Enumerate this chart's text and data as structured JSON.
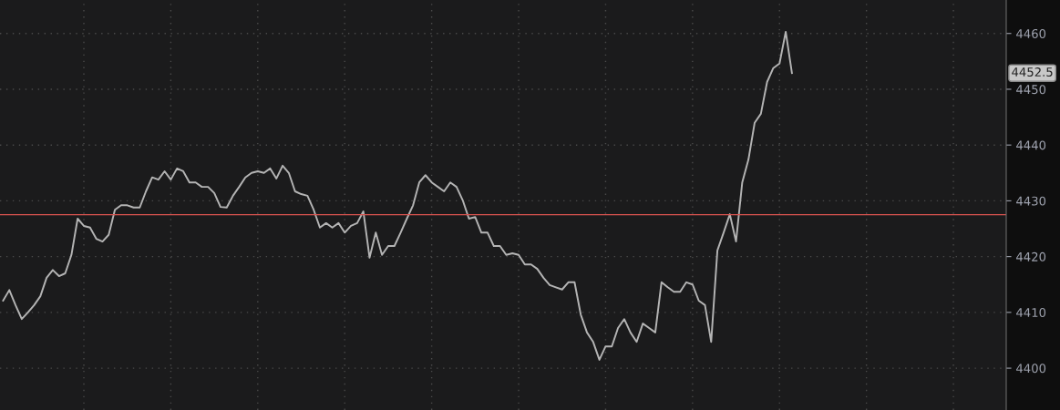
{
  "chart_data": {
    "type": "line",
    "categories": [
      null,
      null,
      null,
      null,
      null,
      null,
      null,
      null,
      null,
      null,
      null,
      null,
      null,
      null,
      null,
      null,
      null,
      null,
      null,
      null,
      null,
      null,
      null,
      null,
      null,
      null,
      null,
      null,
      null,
      null,
      null,
      null,
      null,
      null,
      null,
      null,
      null,
      null,
      null,
      null,
      null,
      null,
      null,
      null,
      null,
      null,
      null,
      null,
      null,
      null,
      null,
      null,
      null,
      null,
      null,
      null,
      null,
      null,
      null,
      null,
      null,
      null,
      null,
      null,
      null,
      null,
      null,
      null,
      null,
      null,
      null,
      null,
      null,
      null,
      null,
      null,
      null,
      null,
      null,
      null,
      null,
      null,
      null,
      null,
      null,
      null,
      null,
      null,
      null,
      null,
      null,
      null,
      null,
      null,
      null,
      null,
      null,
      null,
      null,
      null,
      null,
      null,
      null,
      null,
      null,
      null,
      null,
      null,
      null,
      null,
      null,
      null,
      null,
      null,
      null,
      null,
      null,
      null,
      null,
      null,
      null,
      null,
      null,
      null,
      null,
      null,
      null,
      null,
      null,
      null,
      null,
      null,
      null,
      null,
      null,
      null,
      null,
      null,
      null,
      null,
      null,
      null,
      null,
      null,
      null,
      null,
      null,
      null,
      null,
      null,
      null,
      null,
      null,
      null,
      null,
      null,
      null,
      null,
      null,
      null,
      null,
      null
    ],
    "series": [
      {
        "color": "#b4b4b4",
        "values": [
          4412.1,
          4414.0,
          4411.3,
          4408.8,
          4410,
          4411.3,
          4412.9,
          4416.2,
          4417.6,
          4416.5,
          4417,
          4420.3,
          4426.8,
          4425.5,
          4425.2,
          4423.2,
          4422.7,
          4423.9,
          4428.4,
          4429.2,
          4429.2,
          4428.8,
          4428.8,
          4431.7,
          4434.2,
          4433.8,
          4435.3,
          4433.8,
          4435.8,
          4435.3,
          4433.3,
          4433.3,
          4432.5,
          4432.5,
          4431.4,
          4428.9,
          4428.8,
          4430.9,
          4432.5,
          4434.2,
          4435,
          4435.3,
          4435,
          4435.8,
          4434,
          4436.3,
          4435,
          4431.7,
          4431.2,
          4430.9,
          4428.4,
          4425.2,
          4426,
          4425.2,
          4426,
          4424.3,
          4425.5,
          4426,
          4428.1,
          4419.8,
          4424.3,
          4420.3,
          4421.9,
          4421.9,
          4424.3,
          4426.8,
          4429.2,
          4433.3,
          4434.6,
          4433.3,
          4432.5,
          4431.7,
          4433.3,
          4432.5,
          4430.1,
          4426.8,
          4427.1,
          4424.3,
          4424.3,
          4421.9,
          4421.9,
          4420.3,
          4420.6,
          4420.3,
          4418.6,
          4418.6,
          4417.8,
          4416.2,
          4414.9,
          4414.5,
          4414.1,
          4415.4,
          4415.4,
          4409.6,
          4406.4,
          4404.7,
          4401.5,
          4403.9,
          4403.9,
          4407.2,
          4408.8,
          4406.4,
          4404.7,
          4408,
          4407.2,
          4406.4,
          4415.4,
          4414.5,
          4413.7,
          4413.7,
          4415.4,
          4415,
          4412.1,
          4411.3,
          4404.7,
          4421.1,
          4424.3,
          4427.6,
          4422.7,
          4433.3,
          4437.4,
          4444,
          4445.6,
          4451.3,
          4453.8,
          4454.6,
          4460.3,
          4452.9,
          null,
          null,
          null,
          null,
          null,
          null,
          null,
          null,
          null,
          null,
          null,
          null,
          null,
          null,
          null,
          null,
          null,
          null,
          null,
          null,
          null,
          null,
          null,
          null,
          null,
          null,
          null,
          null,
          null,
          null,
          null,
          null,
          null,
          null
        ]
      }
    ],
    "ylim": [
      4392.5,
      4466
    ],
    "yticks": [
      4400,
      4410,
      4420,
      4430,
      4440,
      4450,
      4460
    ],
    "ref_lines": [
      {
        "axis": "y",
        "value": 4427.5,
        "color": "#d9534f"
      }
    ],
    "annotations": [
      "4452.5"
    ],
    "grid": true,
    "tick_labels": "y",
    "line_style": "solid",
    "marker": "none",
    "legend": false
  }
}
